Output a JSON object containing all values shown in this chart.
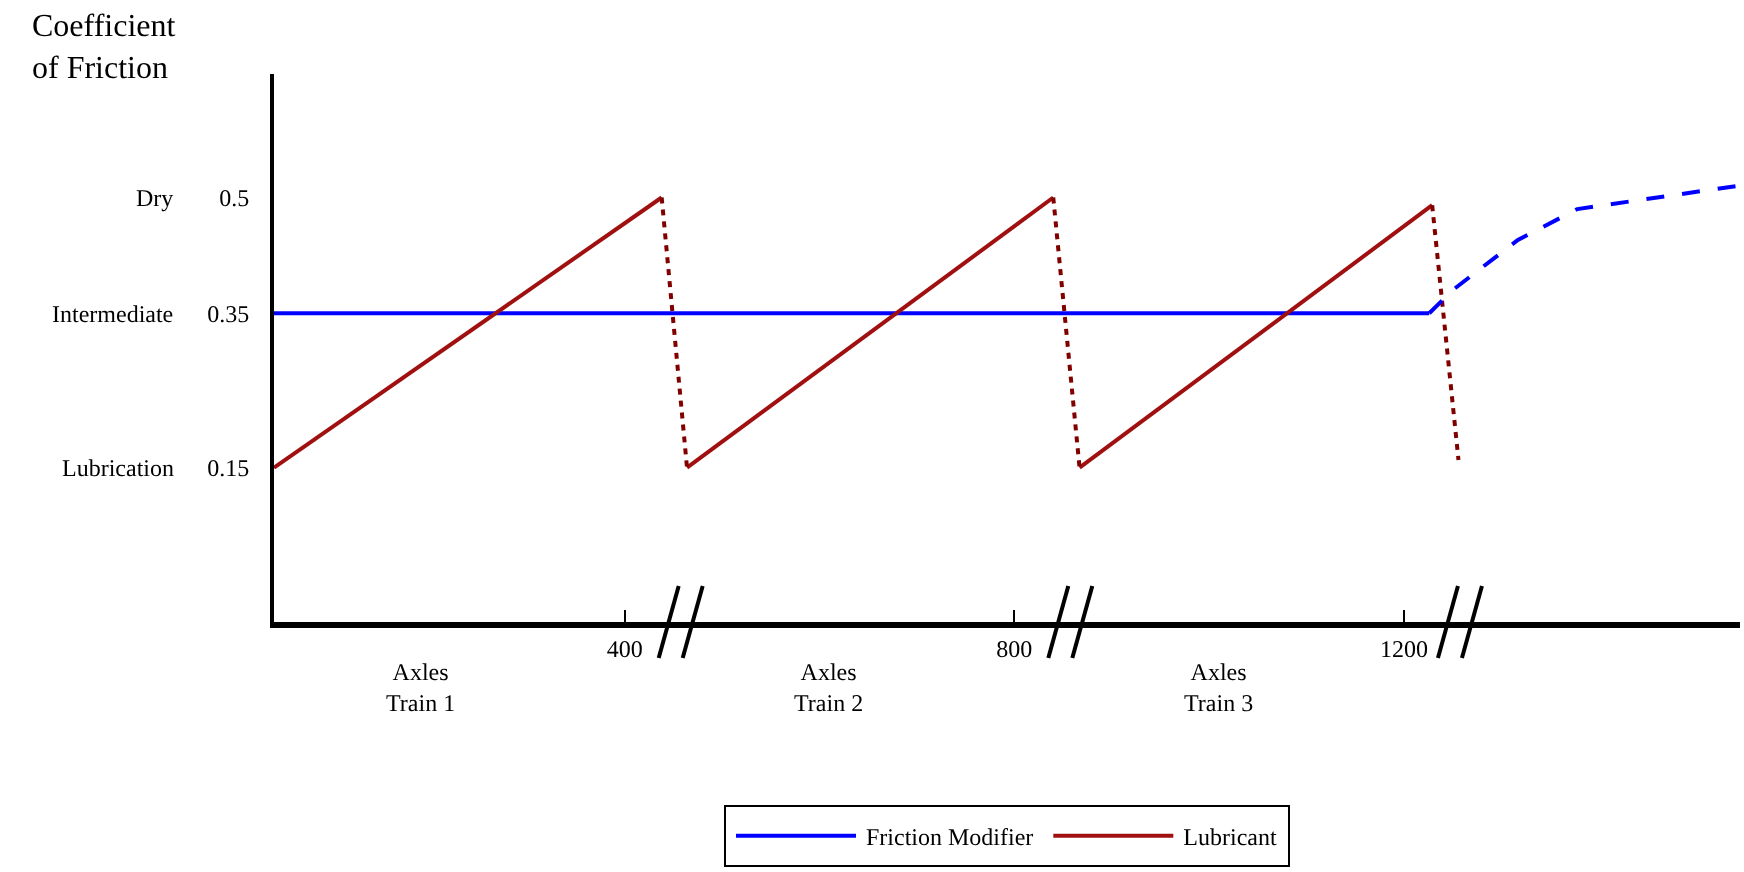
{
  "chart_data": {
    "type": "line",
    "ylabel": "Coefficient\nof Friction",
    "xlim": [
      40,
      1545
    ],
    "xticks": [
      400,
      800,
      1200
    ],
    "ylim": [
      -0.05,
      0.66
    ],
    "yticks": [
      0.5,
      0.35,
      0.15
    ],
    "grid": false,
    "legend": "bottom",
    "marker": "none",
    "line_style": "solid",
    "series": [
      {
        "name": "Friction Modifier",
        "color": "#0000ff",
        "x": [
          40,
          1226
        ],
        "values": [
          0.35,
          0.35
        ]
      },
      {
        "name": "Lubricant",
        "color": "#a01010",
        "x": [
          40,
          438,
          451,
          464,
          840,
          853,
          867,
          1229
        ],
        "values": [
          0.15,
          0.5,
          null,
          0.15,
          0.5,
          null,
          0.15,
          0.49
        ]
      },
      {
        "color": "#800000",
        "line_style": "dotted",
        "x": [
          438,
          464,
          652,
          840,
          867,
          1048,
          1229,
          1256
        ],
        "values": [
          0.5,
          0.15,
          null,
          0.5,
          0.15,
          null,
          0.49,
          0.16
        ]
      },
      {
        "color": "#0000ff",
        "line_style": "dashed",
        "x": [
          1226,
          1250,
          1317,
          1378,
          1460,
          1542
        ],
        "values": [
          0.35,
          0.38,
          0.445,
          0.485,
          0.5,
          0.515
        ]
      }
    ],
    "annotations": [
      "Axles\nTrain 1",
      "Axles\nTrain 2",
      "Axles\nTrain 3",
      "Dry",
      "Intermediate",
      "Lubrication"
    ]
  }
}
